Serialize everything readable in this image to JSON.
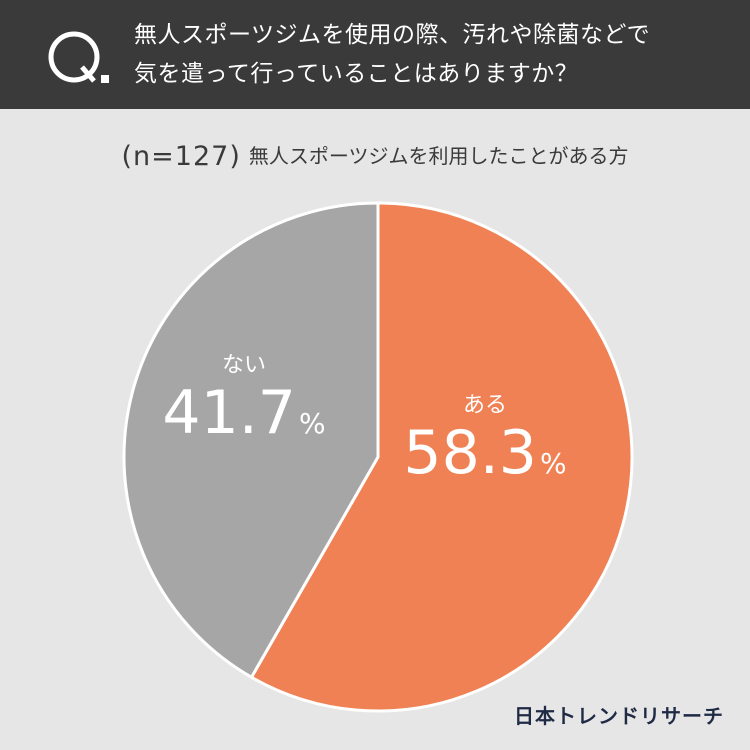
{
  "header": {
    "q_letter": "Q",
    "question_line1": "無人スポーツジムを使用の際、汚れや除菌などで",
    "question_line2": "気を遣って行っていることはありますか？"
  },
  "subtitle": {
    "n_label": "(n=127)",
    "audience": "無人スポーツジムを利用したことがある方"
  },
  "chart_data": {
    "type": "pie",
    "title": "",
    "slices": [
      {
        "label": "ある",
        "value": 58.3,
        "display": "58.3",
        "unit": "%",
        "color": "#f08154"
      },
      {
        "label": "ない",
        "value": 41.7,
        "display": "41.7",
        "unit": "%",
        "color": "#a6a6a6"
      }
    ],
    "start_angle": "12 o'clock",
    "direction": "clockwise"
  },
  "brand": {
    "name": "日本トレンドリサーチ",
    "color": "#1f2a44"
  }
}
